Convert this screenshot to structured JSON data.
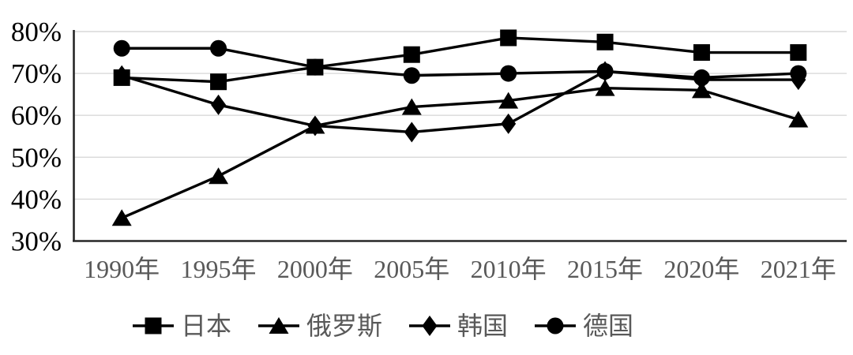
{
  "chart_data": {
    "type": "line",
    "title": "",
    "categories": [
      "1990年",
      "1995年",
      "2000年",
      "2005年",
      "2010年",
      "2015年",
      "2020年",
      "2021年"
    ],
    "y_ticks": [
      "30%",
      "40%",
      "50%",
      "60%",
      "70%",
      "80%"
    ],
    "ylim": [
      30,
      80
    ],
    "y_step": 10,
    "grid": true,
    "legend_position": "bottom",
    "series": [
      {
        "name": "日本",
        "marker": "square",
        "values": [
          69,
          68,
          71.5,
          74.5,
          78.5,
          77.5,
          75,
          75
        ]
      },
      {
        "name": "俄罗斯",
        "marker": "triangle",
        "values": [
          35.5,
          45.5,
          57.5,
          62,
          63.5,
          66.5,
          66,
          59
        ]
      },
      {
        "name": "韩国",
        "marker": "diamond",
        "values": [
          69.5,
          62.5,
          57.5,
          56,
          58,
          70.5,
          68.5,
          68.5
        ]
      },
      {
        "name": "德国",
        "marker": "circle",
        "values": [
          76,
          76,
          71.5,
          69.5,
          70,
          70.5,
          69,
          70
        ]
      }
    ],
    "colors": {
      "series_color": "#000000",
      "gridline_color": "#d9d9d9",
      "axis_line_color": "#262626",
      "ytick_label_color": "#000000",
      "xtick_label_color": "#595959",
      "legend_text_color": "#595959",
      "background": "#ffffff"
    }
  }
}
